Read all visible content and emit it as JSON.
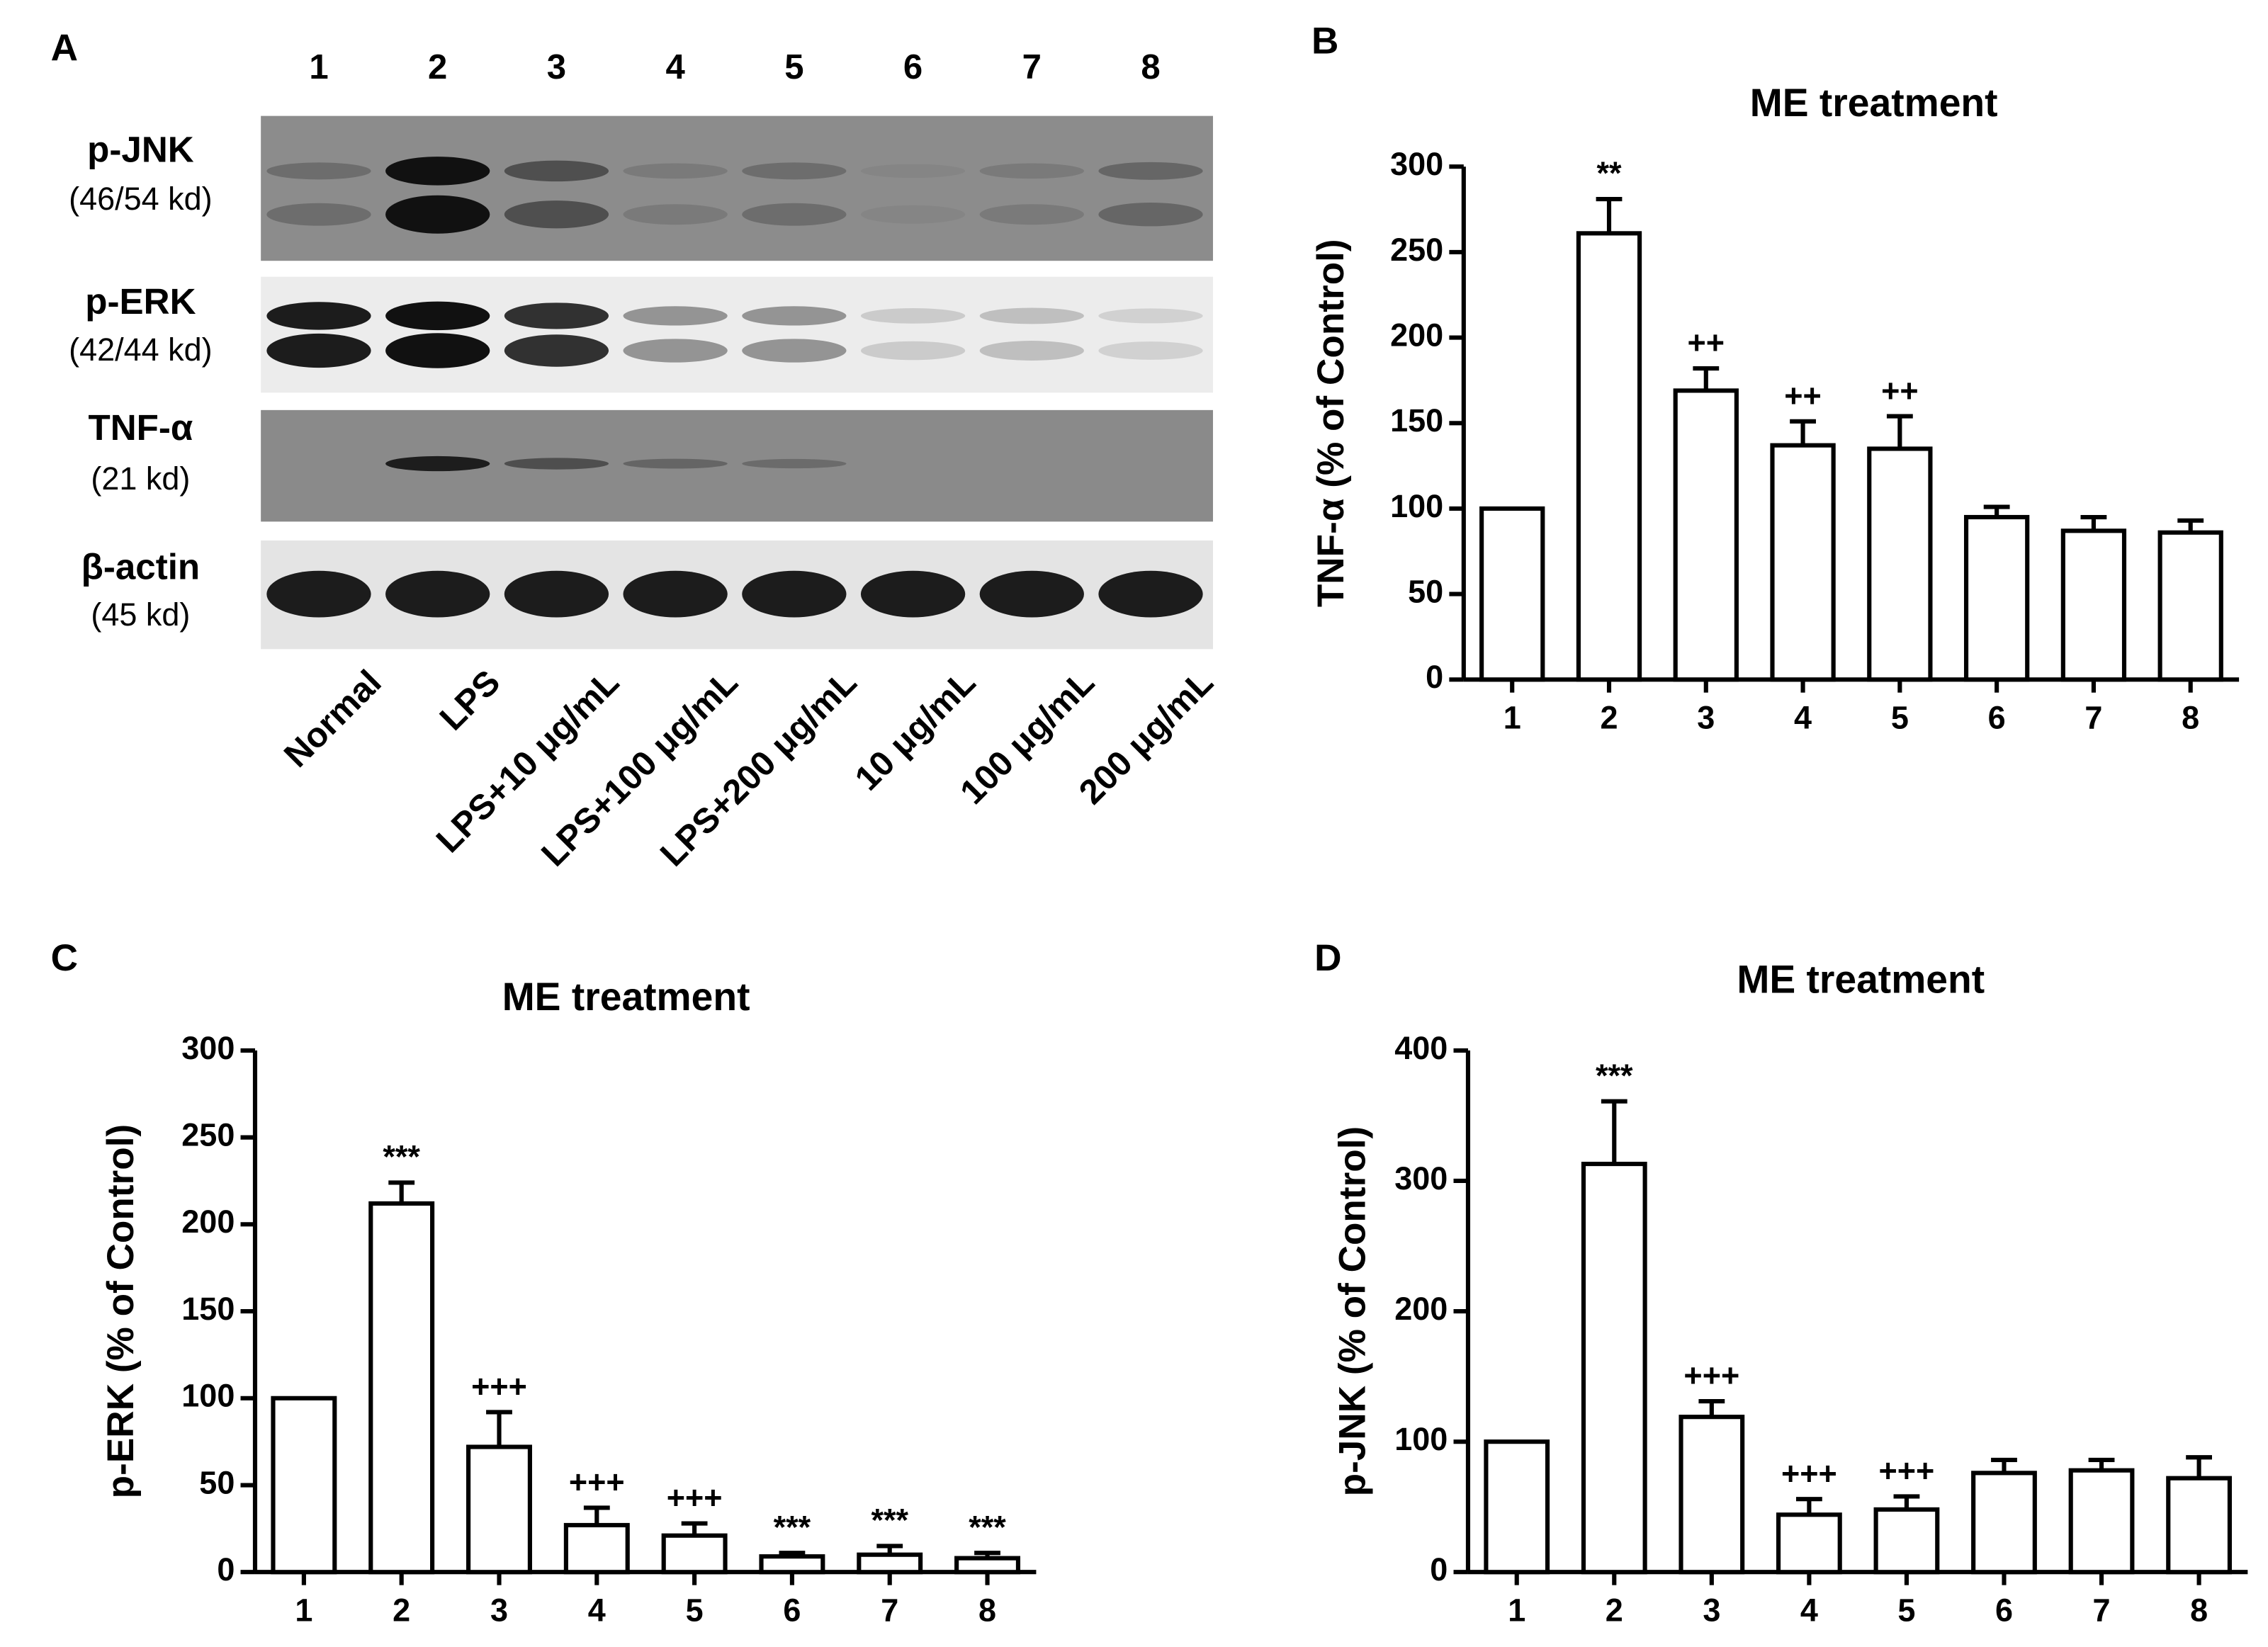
{
  "blot": {
    "panel": "A",
    "lanes": [
      "1",
      "2",
      "3",
      "4",
      "5",
      "6",
      "7",
      "8"
    ],
    "rows": [
      {
        "name": "p-JNK",
        "size": "(46/54 kd)"
      },
      {
        "name": "p-ERK",
        "size": "(42/44 kd)"
      },
      {
        "name": "TNF-α",
        "size": "(21 kd)"
      },
      {
        "name": "β-actin",
        "size": "(45 kd)"
      }
    ],
    "lane_labels": [
      "Normal",
      "LPS",
      "LPS+10 μg/mL",
      "LPS+100 μg/mL",
      "LPS+200 μg/mL",
      "10 μg/mL",
      "100 μg/mL",
      "200 μg/mL"
    ]
  },
  "chart_data": [
    {
      "type": "bar",
      "panel": "B",
      "title": "ME treatment",
      "y_label": "TNF-α (% of Control)",
      "categories": [
        "1",
        "2",
        "3",
        "4",
        "5",
        "6",
        "7",
        "8"
      ],
      "values": [
        100,
        261,
        169,
        137,
        135,
        95,
        87,
        86
      ],
      "errors": [
        null,
        20,
        13,
        14,
        19,
        6,
        8,
        7
      ],
      "annotations": [
        null,
        "**",
        "++",
        "++",
        "++",
        null,
        null,
        null
      ],
      "ylim": [
        0,
        300
      ],
      "yticks": [
        0,
        50,
        100,
        150,
        200,
        250,
        300
      ],
      "color": "#ffffff"
    },
    {
      "type": "bar",
      "panel": "C",
      "title": "ME treatment",
      "y_label": "p-ERK (% of Control)",
      "categories": [
        "1",
        "2",
        "3",
        "4",
        "5",
        "6",
        "7",
        "8"
      ],
      "values": [
        100,
        212,
        72,
        27,
        21,
        9,
        10,
        8
      ],
      "errors": [
        null,
        12,
        20,
        10,
        7,
        2,
        5,
        3
      ],
      "annotations": [
        null,
        "***",
        "+++",
        "+++",
        "+++",
        "***",
        "***",
        "***"
      ],
      "ylim": [
        0,
        300
      ],
      "yticks": [
        0,
        50,
        100,
        150,
        200,
        250,
        300
      ],
      "color": "#ffffff"
    },
    {
      "type": "bar",
      "panel": "D",
      "title": "ME treatment",
      "y_label": "p-JNK (% of Control)",
      "categories": [
        "1",
        "2",
        "3",
        "4",
        "5",
        "6",
        "7",
        "8"
      ],
      "values": [
        100,
        313,
        119,
        44,
        48,
        76,
        78,
        72
      ],
      "errors": [
        null,
        48,
        12,
        12,
        10,
        10,
        8,
        16
      ],
      "annotations": [
        null,
        "***",
        "+++",
        "+++",
        "+++",
        null,
        null,
        null
      ],
      "ylim": [
        0,
        400
      ],
      "yticks": [
        0,
        100,
        200,
        300,
        400
      ],
      "color": "#ffffff"
    }
  ]
}
